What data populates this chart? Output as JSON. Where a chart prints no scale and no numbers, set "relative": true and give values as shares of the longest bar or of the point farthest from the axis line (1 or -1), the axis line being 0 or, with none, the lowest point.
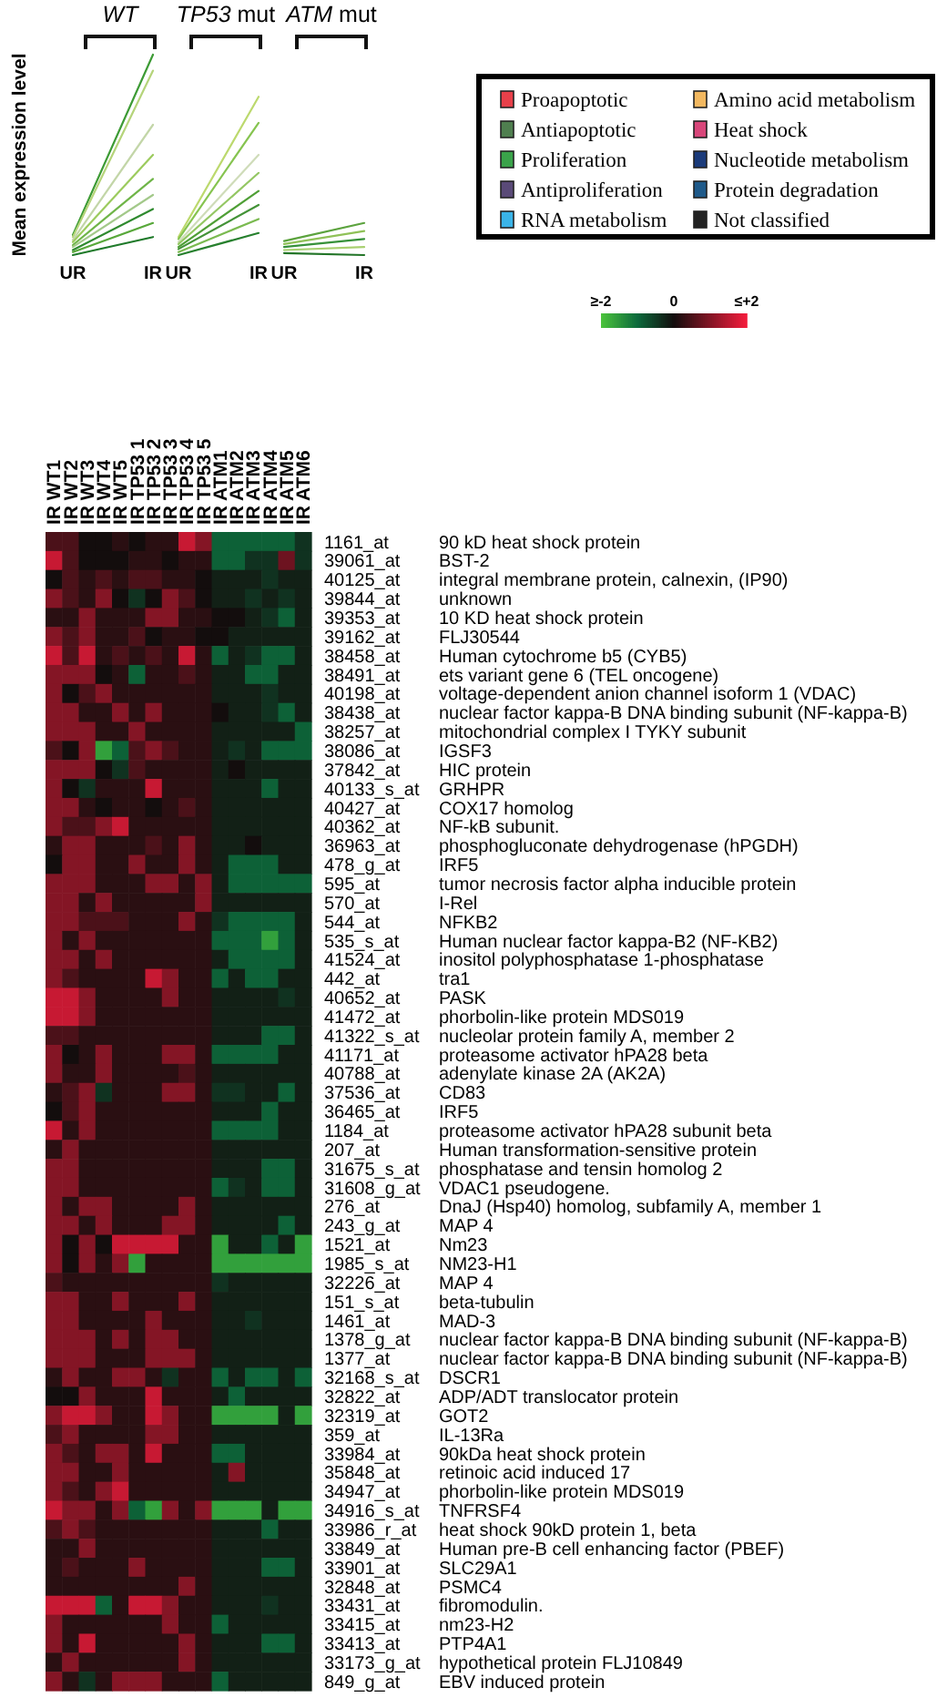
{
  "chart_data": [
    {
      "type": "line",
      "ylabel": "Mean expression level",
      "categories": [
        "UR",
        "IR",
        "UR",
        "IR",
        "UR",
        "IR"
      ],
      "relative": true,
      "annotations": [
        "WT",
        "TP53 mut",
        "ATM mut"
      ],
      "series": [
        {
          "color": "#3d9b35",
          "values": [
            0.1,
            1.0,
            null,
            null,
            null,
            null
          ]
        },
        {
          "color": "#b5d47a",
          "values": [
            0.09,
            0.92,
            null,
            null,
            null,
            null
          ]
        },
        {
          "color": "#c3d6a8",
          "values": [
            0.075,
            0.65,
            null,
            null,
            null,
            null
          ]
        },
        {
          "color": "#9ccb5e",
          "values": [
            0.065,
            0.5,
            null,
            null,
            null,
            null
          ]
        },
        {
          "color": "#6fb548",
          "values": [
            0.05,
            0.38,
            null,
            null,
            null,
            null
          ]
        },
        {
          "color": "#a3c98a",
          "values": [
            0.04,
            0.3,
            null,
            null,
            null,
            null
          ]
        },
        {
          "color": "#2f8a2f",
          "values": [
            0.025,
            0.23,
            null,
            null,
            null,
            null
          ]
        },
        {
          "color": "#58a83a",
          "values": [
            0.015,
            0.16,
            null,
            null,
            null,
            null
          ]
        },
        {
          "color": "#1f7a2a",
          "values": [
            0,
            0.09,
            null,
            null,
            null,
            null
          ]
        },
        {
          "color": "#bcd96e",
          "values": [
            null,
            null,
            0.09,
            0.79,
            null,
            null
          ]
        },
        {
          "color": "#86c450",
          "values": [
            null,
            null,
            0.08,
            0.66,
            null,
            null
          ]
        },
        {
          "color": "#cfdcb9",
          "values": [
            null,
            null,
            0.065,
            0.5,
            null,
            null
          ]
        },
        {
          "color": "#94c764",
          "values": [
            null,
            null,
            0.055,
            0.41,
            null,
            null
          ]
        },
        {
          "color": "#4f9f36",
          "values": [
            null,
            null,
            0.04,
            0.32,
            null,
            null
          ]
        },
        {
          "color": "#449338",
          "values": [
            null,
            null,
            0.03,
            0.25,
            null,
            null
          ]
        },
        {
          "color": "#7aba50",
          "values": [
            null,
            null,
            0.015,
            0.18,
            null,
            null
          ]
        },
        {
          "color": "#27802e",
          "values": [
            null,
            null,
            0,
            0.11,
            null,
            null
          ]
        },
        {
          "color": "#5ca33e",
          "values": [
            null,
            null,
            null,
            null,
            0.07,
            0.16
          ]
        },
        {
          "color": "#8fc157",
          "values": [
            null,
            null,
            null,
            null,
            0.055,
            0.12
          ]
        },
        {
          "color": "#36913a",
          "values": [
            null,
            null,
            null,
            null,
            0.04,
            0.08
          ]
        },
        {
          "color": "#a8d070",
          "values": [
            null,
            null,
            null,
            null,
            0.025,
            0.04
          ]
        },
        {
          "color": "#237528",
          "values": [
            null,
            null,
            null,
            null,
            0.01,
            0
          ]
        }
      ]
    },
    {
      "type": "other",
      "categories": [
        "Proapoptotic",
        "Antiapoptotic",
        "Proliferation",
        "Antiproliferation",
        "RNA metabolism",
        "Amino acid metabolism",
        "Heat shock",
        "Nucleotide metabolism",
        "Protein degradation",
        "Not classified"
      ],
      "colors": [
        "#e8404a",
        "#4f7f4f",
        "#3aa34a",
        "#5a4a78",
        "#3ab4e8",
        "#f2b860",
        "#d8467a",
        "#1a3a7a",
        "#1f5a8a",
        "#222222"
      ]
    },
    {
      "type": "heatmap",
      "categories": [
        "IR WT1",
        "IR WT2",
        "IR WT3",
        "IR WT4",
        "IR WT5",
        "IR TP53 1",
        "IR TP53 2",
        "IR TP53 3",
        "IR TP53 4",
        "IR TP53 5",
        "IR ATM1",
        "IR ATM2",
        "IR ATM3",
        "IR ATM4",
        "IR ATM5",
        "IR ATM6"
      ],
      "y_categories": [
        "1161_at",
        "39061_at",
        "40125_at",
        "39844_at",
        "39353_at",
        "39162_at",
        "38458_at",
        "38491_at",
        "40198_at",
        "38438_at",
        "38257_at",
        "38086_at",
        "37842_at",
        "40133_s_at",
        "40427_at",
        "40362_at",
        "36963_at",
        "478_g_at",
        "595_at",
        "570_at",
        "544_at",
        "535_s_at",
        "41524_at",
        "442_at",
        "40652_at",
        "41472_at",
        "41322_s_at",
        "41171_at",
        "40788_at",
        "37536_at",
        "36465_at",
        "1184_at",
        "207_at",
        "31675_s_at",
        "31608_g_at",
        "276_at",
        "243_g_at",
        "1521_at",
        "1985_s_at",
        "32226_at",
        "151_s_at",
        "1461_at",
        "1378_g_at",
        "1377_at",
        "32168_s_at",
        "32822_at",
        "32319_at",
        "359_at",
        "33984_at",
        "35848_at",
        "34947_at",
        "34916_s_at",
        "33986_r_at",
        "33849_at",
        "33901_at",
        "32848_at",
        "33431_at",
        "33415_at",
        "33413_at",
        "33173_g_at",
        "849_g_at"
      ],
      "y2_categories": [
        "90 kD heat shock protein",
        "BST-2",
        "integral membrane protein, calnexin, (IP90)",
        "unknown",
        "10 KD heat shock protein",
        "FLJ30544",
        "Human cytochrome b5 (CYB5)",
        "ets variant gene 6 (TEL oncogene)",
        "voltage-dependent anion channel isoform 1 (VDAC)",
        "nuclear factor kappa-B DNA binding subunit (NF-kappa-B)",
        "mitochondrial complex I TYKY subunit",
        "IGSF3",
        "HIC protein",
        "GRHPR",
        "COX17 homolog",
        "NF-kB subunit.",
        "phosphogluconate dehydrogenase (hPGDH)",
        "IRF5",
        "tumor necrosis factor alpha inducible protein",
        "I-Rel",
        "NFKB2",
        "Human nuclear factor kappa-B2 (NF-KB2)",
        "inositol polyphosphatase 1-phosphatase",
        "tra1",
        "PASK",
        "phorbolin-like protein MDS019",
        "nucleolar protein family A, member 2",
        "proteasome activator hPA28 beta",
        "adenylate kinase 2A (AK2A)",
        "CD83",
        "IRF5",
        "proteasome activator hPA28 subunit beta",
        "Human transformation-sensitive protein",
        "phosphatase and tensin homolog 2",
        "VDAC1 pseudogene.",
        "DnaJ (Hsp40) homolog, subfamily A, member 1",
        "MAP 4",
        "Nm23",
        "NM23-H1",
        "MAP 4",
        "beta-tubulin",
        "MAD-3",
        "nuclear factor kappa-B DNA binding subunit (NF-kappa-B)",
        "nuclear factor kappa-B DNA binding subunit (NF-kappa-B)",
        "DSCR1",
        "ADP/ADT translocator protein",
        "GOT2",
        "IL-13Ra",
        "90kDa heat shock protein",
        "retinoic acid induced 17",
        "phorbolin-like protein MDS019",
        "TNFRSF4",
        "heat shock 90kD protein 1, beta",
        "Human pre-B cell enhancing factor (PBEF)",
        "SLC29A1",
        "PSMC4",
        "fibromodulin.",
        "nm23-H2",
        "PTP4A1",
        "hypothetical protein FLJ10849",
        "EBV induced protein"
      ],
      "cells": [
        [
          0.5,
          0.5,
          0,
          0,
          0.2,
          0,
          0.2,
          0.2,
          1.6,
          1.0,
          -0.9,
          -0.9,
          -0.9,
          -0.9,
          -0.9,
          -0.4
        ],
        [
          1.6,
          0.5,
          0,
          0,
          0,
          0.2,
          0.2,
          0,
          0.2,
          0.2,
          -0.9,
          -0.9,
          -0.4,
          -0.4,
          0.8,
          -0.4
        ],
        [
          0,
          0.5,
          0.2,
          0.5,
          0.2,
          0.5,
          0.5,
          0.2,
          0.2,
          0,
          -0.2,
          -0.2,
          -0.2,
          -0.4,
          -0.2,
          -0.2
        ],
        [
          1.0,
          0.5,
          0.2,
          1.0,
          0,
          -0.4,
          0,
          1.0,
          0.5,
          0,
          -0.2,
          -0.2,
          -0.4,
          -0.2,
          -0.4,
          -0.2
        ],
        [
          0.2,
          0.2,
          1.0,
          0.2,
          0.2,
          0.2,
          1.0,
          1.0,
          0.2,
          0.2,
          0,
          0,
          -0.2,
          -0.4,
          -0.9,
          -0.2
        ],
        [
          1.0,
          0.5,
          1.0,
          0.2,
          0.2,
          0.5,
          0,
          0.2,
          0.2,
          0,
          0,
          -0.2,
          -0.2,
          -0.2,
          -0.2,
          -0.2
        ],
        [
          1.6,
          0.5,
          1.6,
          0.2,
          0.5,
          0.2,
          0.5,
          0.2,
          1.6,
          0.2,
          -0.9,
          -0.2,
          -0.4,
          -0.9,
          -0.9,
          -0.2
        ],
        [
          1.0,
          1.0,
          1.0,
          0,
          0.2,
          -0.9,
          0.2,
          0.2,
          0.5,
          0.2,
          -0.2,
          -0.2,
          -0.9,
          -0.9,
          -0.2,
          -0.2
        ],
        [
          1.0,
          0,
          0.5,
          1.0,
          0.2,
          0.2,
          0.2,
          0.2,
          0.2,
          0.2,
          -0.2,
          -0.2,
          -0.2,
          -0.4,
          -0.2,
          -0.2
        ],
        [
          1.0,
          1.0,
          0.2,
          0.2,
          1.0,
          0.2,
          1.0,
          0.2,
          0.2,
          0.2,
          0,
          -0.2,
          -0.2,
          -0.4,
          -0.9,
          -0.2
        ],
        [
          1.0,
          1.0,
          1.0,
          0.2,
          0.2,
          1.0,
          0.2,
          0.2,
          0.2,
          0.2,
          -0.2,
          -0.2,
          -0.2,
          -0.2,
          -0.2,
          -0.9
        ],
        [
          0.5,
          0,
          1.0,
          -1.6,
          -0.9,
          0.5,
          1.0,
          0.5,
          0.2,
          0.2,
          -0.2,
          -0.4,
          -0.2,
          -0.9,
          -0.9,
          -0.9
        ],
        [
          1.0,
          1.0,
          1.0,
          0,
          -0.4,
          0.5,
          0.2,
          0.2,
          0.2,
          0.2,
          -0.2,
          0,
          -0.2,
          -0.2,
          -0.2,
          -0.2
        ],
        [
          1.0,
          0,
          -0.4,
          0.2,
          0.2,
          0.2,
          1.6,
          0.2,
          0.2,
          0.2,
          -0.2,
          -0.2,
          -0.2,
          -0.9,
          -0.2,
          -0.2
        ],
        [
          1.0,
          1.0,
          0.2,
          0,
          0.2,
          0.2,
          0,
          0.2,
          0.5,
          0.2,
          -0.2,
          -0.2,
          -0.2,
          -0.2,
          -0.2,
          -0.2
        ],
        [
          1.0,
          0.5,
          0.5,
          1.0,
          1.6,
          0.2,
          0.2,
          0.2,
          0.2,
          0.2,
          -0.2,
          -0.2,
          -0.2,
          -0.2,
          -0.2,
          -0.2
        ],
        [
          0.2,
          1.0,
          1.0,
          0.2,
          0.2,
          0.2,
          0.5,
          0.2,
          1.0,
          0.2,
          -0.2,
          -0.2,
          0,
          -0.2,
          -0.2,
          -0.2
        ],
        [
          0,
          1.0,
          1.0,
          0.2,
          0.2,
          1.0,
          0.2,
          0.2,
          1.0,
          0.2,
          -0.2,
          -0.9,
          -0.9,
          -0.9,
          -0.2,
          -0.2
        ],
        [
          1.0,
          1.0,
          1.0,
          0.2,
          0.2,
          0.2,
          1.0,
          1.0,
          0.2,
          1.0,
          -0.2,
          -0.9,
          -0.9,
          -0.9,
          -0.9,
          -0.9
        ],
        [
          1.0,
          1.0,
          0.2,
          1.0,
          0.2,
          0.2,
          0.2,
          0.2,
          0.2,
          1.0,
          -0.2,
          -0.2,
          -0.2,
          -0.2,
          -0.2,
          -0.2
        ],
        [
          1.0,
          1.0,
          0.5,
          0.5,
          0.5,
          0.2,
          0.2,
          0.2,
          1.0,
          0.2,
          -0.4,
          -0.9,
          -0.9,
          -0.9,
          -0.9,
          -0.2
        ],
        [
          1.0,
          0.2,
          1.0,
          0.2,
          0.2,
          0.2,
          0.2,
          0.2,
          0.2,
          0.2,
          -0.9,
          -0.9,
          -0.9,
          -1.6,
          -0.9,
          -0.2
        ],
        [
          1.0,
          1.0,
          0.2,
          1.0,
          0.2,
          0.2,
          0.2,
          0.2,
          0.2,
          0.2,
          -0.2,
          -0.9,
          -0.9,
          -0.9,
          -0.9,
          -0.2
        ],
        [
          1.0,
          0.5,
          0.2,
          0.2,
          0.2,
          0.2,
          1.6,
          1.0,
          0.2,
          0.2,
          -0.9,
          -0.2,
          -0.9,
          -0.9,
          -0.2,
          -0.2
        ],
        [
          1.6,
          1.6,
          1.0,
          0.2,
          0.2,
          0.2,
          0.2,
          1.0,
          0.2,
          0.2,
          -0.2,
          -0.2,
          -0.2,
          -0.2,
          -0.4,
          -0.2
        ],
        [
          1.6,
          1.6,
          1.0,
          0.2,
          0.2,
          0.2,
          0.2,
          0.2,
          0.2,
          0.2,
          -0.2,
          -0.2,
          -0.2,
          -0.2,
          -0.2,
          -0.2
        ],
        [
          0.5,
          0.5,
          0.2,
          0.2,
          0.2,
          0.2,
          0.2,
          0.2,
          0.2,
          0.2,
          -0.2,
          -0.2,
          -0.2,
          -0.9,
          -0.9,
          -0.2
        ],
        [
          1.0,
          0,
          0.2,
          1.0,
          0.2,
          0.2,
          0.2,
          1.0,
          1.0,
          0.2,
          -0.9,
          -0.9,
          -0.9,
          -0.9,
          -0.2,
          -0.2
        ],
        [
          1.0,
          0.2,
          0.2,
          1.0,
          0.2,
          0.2,
          0.2,
          0.2,
          0.5,
          0.2,
          -0.2,
          -0.2,
          -0.2,
          -0.2,
          -0.2,
          -0.2
        ],
        [
          0.2,
          0.5,
          1.0,
          -0.4,
          0.2,
          0.2,
          0.2,
          1.0,
          1.0,
          0.2,
          -0.4,
          -0.4,
          -0.2,
          -0.2,
          -0.9,
          -0.2
        ],
        [
          0,
          0.5,
          1.0,
          0.2,
          0.2,
          0.2,
          0.2,
          0.2,
          0.2,
          0.2,
          -0.2,
          -0.2,
          -0.2,
          -0.9,
          -0.2,
          -0.2
        ],
        [
          1.6,
          0.2,
          1.0,
          0.2,
          0.2,
          0.2,
          0.2,
          0.2,
          0.2,
          0.2,
          -0.9,
          -0.9,
          -0.9,
          -0.9,
          -0.2,
          -0.2
        ],
        [
          0.2,
          1.0,
          0.2,
          0.2,
          0.2,
          0.2,
          0.2,
          0.2,
          0.2,
          0.2,
          -0.2,
          -0.2,
          -0.2,
          -0.2,
          -0.2,
          -0.2
        ],
        [
          1.0,
          1.0,
          0.2,
          0.2,
          0.2,
          0.2,
          0.2,
          0.2,
          0.2,
          0.2,
          -0.2,
          -0.2,
          -0.2,
          -0.9,
          -0.9,
          -0.2
        ],
        [
          1.0,
          1.0,
          0.2,
          0.2,
          0.2,
          0.2,
          0.2,
          0.2,
          0.2,
          0.2,
          -0.9,
          -0.4,
          -0.2,
          -0.9,
          -0.9,
          -0.2
        ],
        [
          1.0,
          0.2,
          1.0,
          1.0,
          0.2,
          0.2,
          0.2,
          0.2,
          1.0,
          0.2,
          -0.2,
          -0.2,
          -0.2,
          -0.2,
          -0.2,
          -0.2
        ],
        [
          1.0,
          1.0,
          0.2,
          1.0,
          0.2,
          0.2,
          0.2,
          1.0,
          1.0,
          0.2,
          -0.2,
          -0.2,
          -0.2,
          -0.2,
          -0.9,
          -0.2
        ],
        [
          1.0,
          0,
          1.0,
          0,
          1.6,
          1.6,
          1.6,
          1.6,
          0.2,
          0.2,
          -1.6,
          -0.2,
          -0.2,
          -0.9,
          -0.2,
          -1.6
        ],
        [
          1.0,
          0,
          1.0,
          0.2,
          1.0,
          -1.6,
          0.2,
          0.2,
          0.2,
          0.2,
          -1.6,
          -1.6,
          -1.6,
          -1.6,
          -1.6,
          -1.6
        ],
        [
          0.5,
          0.2,
          0.2,
          0.2,
          0.2,
          0.2,
          0.2,
          0.2,
          0.2,
          0.2,
          -0.4,
          -0.2,
          -0.2,
          -0.2,
          -0.2,
          -0.2
        ],
        [
          1.0,
          1.0,
          0.2,
          0.2,
          1.0,
          0.2,
          0.2,
          0.2,
          1.0,
          0.2,
          -0.2,
          -0.2,
          -0.2,
          -0.2,
          -0.2,
          -0.2
        ],
        [
          1.0,
          1.0,
          0.2,
          0.2,
          0.2,
          0.2,
          1.0,
          0.2,
          0.2,
          0.2,
          -0.2,
          -0.2,
          -0.4,
          -0.2,
          -0.2,
          -0.2
        ],
        [
          1.0,
          1.0,
          1.0,
          0.2,
          1.0,
          0.2,
          1.0,
          1.0,
          0.2,
          0.2,
          -0.2,
          -0.2,
          -0.2,
          -0.2,
          -0.2,
          -0.2
        ],
        [
          1.0,
          1.0,
          1.0,
          0.2,
          0.2,
          0.2,
          1.0,
          1.0,
          1.0,
          0.2,
          -0.2,
          -0.2,
          -0.2,
          -0.2,
          -0.2,
          -0.2
        ],
        [
          0.2,
          1.0,
          0.2,
          0.2,
          1.0,
          1.0,
          0.2,
          -0.4,
          0.2,
          0.2,
          -0.9,
          -0.2,
          -0.9,
          -0.9,
          -0.2,
          -0.9
        ],
        [
          0,
          0,
          1.0,
          0.2,
          0.2,
          0.2,
          1.6,
          0.2,
          0.2,
          0.2,
          -0.2,
          -0.9,
          -0.2,
          -0.2,
          -0.2,
          -0.2
        ],
        [
          1.0,
          1.6,
          1.6,
          1.0,
          0.2,
          0.2,
          1.6,
          1.0,
          0.2,
          0.2,
          -1.6,
          -1.6,
          -1.6,
          -1.6,
          -0.2,
          -1.6
        ],
        [
          0.5,
          1.0,
          0.2,
          0.2,
          0.2,
          0.2,
          1.0,
          1.0,
          0.2,
          0.2,
          -0.2,
          -0.2,
          -0.2,
          -0.2,
          -0.2,
          -0.2
        ],
        [
          1.0,
          0.5,
          0.2,
          1.0,
          1.0,
          0.2,
          1.6,
          0.2,
          0.2,
          0.2,
          -0.9,
          -0.9,
          -0.2,
          -0.2,
          -0.2,
          -0.2
        ],
        [
          1.0,
          1.0,
          0.2,
          0.2,
          1.0,
          0.2,
          0.2,
          0.2,
          0.2,
          0.2,
          -0.2,
          1.0,
          -0.2,
          -0.2,
          -0.2,
          -0.2
        ],
        [
          1.0,
          0.5,
          0.2,
          1.0,
          1.6,
          0.2,
          0.2,
          0.2,
          0.2,
          0.2,
          -0.2,
          -0.2,
          -0.2,
          -0.2,
          -0.2,
          -0.2
        ],
        [
          1.6,
          1.0,
          1.0,
          0.2,
          1.0,
          -0.9,
          -1.6,
          1.0,
          0.2,
          1.0,
          -1.6,
          -1.6,
          -1.6,
          -0.2,
          -1.6,
          -1.6
        ],
        [
          0.5,
          1.0,
          0.5,
          0.2,
          0.2,
          0.2,
          0.2,
          0.2,
          0.2,
          0.2,
          -0.2,
          -0.2,
          -0.2,
          -0.9,
          -0.2,
          -0.2
        ],
        [
          0.2,
          0.2,
          1.0,
          0.2,
          0.2,
          0.2,
          0.2,
          0.2,
          0.2,
          0.2,
          -0.2,
          -0.2,
          -0.2,
          -0.2,
          -0.2,
          -0.2
        ],
        [
          0.2,
          0.5,
          0.2,
          0.2,
          0.2,
          1.0,
          0.2,
          0.2,
          0.2,
          0.2,
          -0.2,
          -0.2,
          -0.2,
          -0.9,
          -0.9,
          -0.2
        ],
        [
          0.2,
          0.2,
          0.2,
          0.2,
          0.2,
          0.2,
          0.2,
          0.2,
          1.0,
          0.2,
          -0.2,
          -0.2,
          -0.2,
          -0.2,
          -0.2,
          -0.2
        ],
        [
          1.6,
          1.6,
          1.6,
          -0.9,
          0.2,
          1.6,
          1.6,
          1.0,
          0.2,
          0.2,
          -0.2,
          -0.2,
          -0.2,
          -0.4,
          -0.2,
          -0.2
        ],
        [
          1.0,
          0.2,
          0.2,
          0.2,
          0.2,
          0.2,
          0.2,
          1.0,
          0.2,
          0.2,
          -0.9,
          -0.2,
          -0.2,
          -0.2,
          -0.2,
          -0.2
        ],
        [
          1.0,
          0.2,
          1.6,
          0.2,
          0.2,
          0.2,
          0.2,
          0.2,
          1.0,
          0.2,
          -0.2,
          -0.2,
          -0.2,
          -0.9,
          -0.9,
          -0.2
        ],
        [
          0.2,
          1.0,
          0.2,
          0.2,
          0.2,
          0.2,
          0.2,
          0.2,
          1.0,
          0.2,
          -0.2,
          -0.2,
          -0.2,
          -0.2,
          -0.2,
          -0.2
        ],
        [
          1.0,
          0.2,
          -0.4,
          0.2,
          1.0,
          1.0,
          1.0,
          0.2,
          0.2,
          0.2,
          -0.9,
          -0.2,
          -0.2,
          -0.2,
          -0.2,
          -0.2
        ]
      ],
      "clim": [
        -2,
        2
      ],
      "cticks": [
        {
          "value": -2,
          "label": "≥-2"
        },
        0,
        {
          "value": 2,
          "label": "≤+2"
        }
      ]
    }
  ]
}
